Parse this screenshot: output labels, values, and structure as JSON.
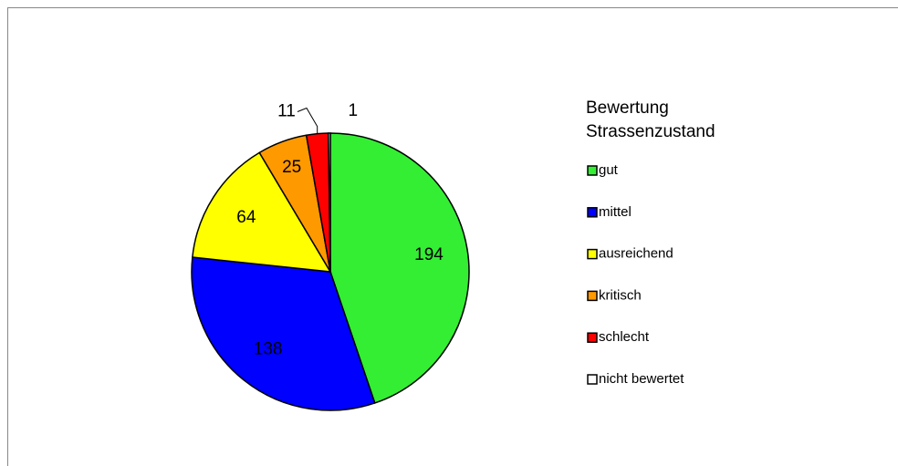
{
  "chart_data": {
    "type": "pie",
    "legend_title": "Bewertung Strassenzustand",
    "categories": [
      "gut",
      "mittel",
      "ausreichend",
      "kritisch",
      "schlecht",
      "nicht bewertet"
    ],
    "values": [
      194,
      138,
      64,
      25,
      11,
      1
    ],
    "colors": [
      "#33ee33",
      "#0000ff",
      "#ffff00",
      "#ff9900",
      "#ff0000",
      "#ffffff"
    ],
    "legend": "right"
  }
}
